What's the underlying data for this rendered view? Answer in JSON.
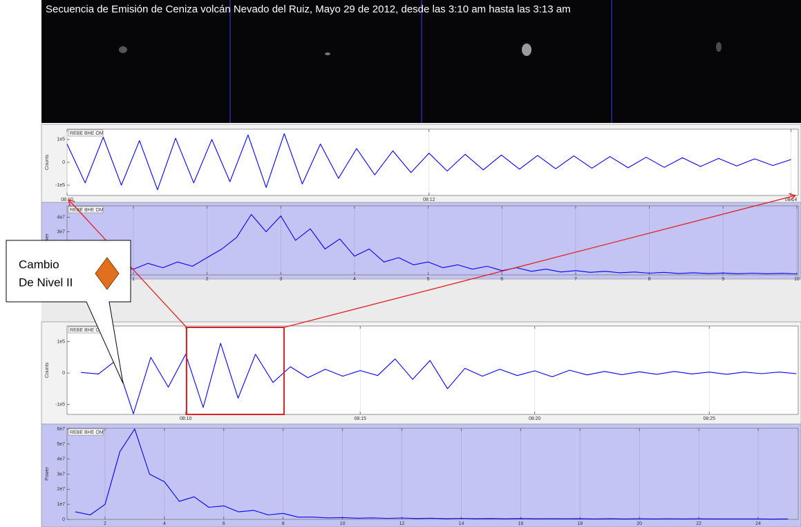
{
  "image_panel": {
    "title": "Secuencia de Emisión de Ceniza volcán Nevado del Ruiz, Mayo 29 de 2012, desde las 3:10 am hasta las 3:13 am"
  },
  "callout": {
    "lines": [
      "Cambio",
      "De Nivel II"
    ]
  },
  "chart_data": [
    {
      "type": "line",
      "label": "REBE BHE OM",
      "ylabel": "Counts",
      "color": "#0000ff",
      "background": "#ffffff",
      "grid": true,
      "x": [
        10.0,
        10.1,
        10.2,
        10.3,
        10.4,
        10.5,
        10.6,
        10.7,
        10.8,
        10.9,
        11.0,
        11.1,
        11.2,
        11.3,
        11.4,
        11.5,
        11.6,
        11.7,
        11.8,
        11.9,
        12.0,
        12.1,
        12.2,
        12.3,
        12.4,
        12.5,
        12.6,
        12.7,
        12.8,
        12.9,
        13.0,
        13.1,
        13.2,
        13.3,
        13.4,
        13.5,
        13.6,
        13.7,
        13.8,
        13.9,
        14.0
      ],
      "values": [
        80000,
        -90000,
        110000,
        -100000,
        95000,
        -120000,
        105000,
        -90000,
        100000,
        -85000,
        120000,
        -110000,
        125000,
        -95000,
        80000,
        -70000,
        60000,
        -55000,
        50000,
        -45000,
        40000,
        -38000,
        35000,
        -33000,
        32000,
        -30000,
        30000,
        -28000,
        28000,
        -26000,
        25000,
        -24000,
        22000,
        -22000,
        20000,
        -18000,
        17000,
        -16000,
        15000,
        -14000,
        12000
      ],
      "xlim": [
        10,
        14.04
      ],
      "ylim": [
        -145000,
        145000
      ],
      "xticks": [
        {
          "value": 10,
          "label": "08:10"
        },
        {
          "value": 12,
          "label": "08:12"
        },
        {
          "value": 14,
          "label": "08:14"
        }
      ],
      "yticks": [
        {
          "value": -100000,
          "label": "-1e5"
        },
        0,
        {
          "value": 100000,
          "label": "1e5"
        }
      ]
    },
    {
      "type": "line",
      "label": "REBE BHE OM",
      "ylabel": "Power",
      "color": "#0000ff",
      "background": "#c4c4f4",
      "grid": true,
      "x": [
        0.2,
        0.4,
        0.6,
        0.8,
        1.0,
        1.2,
        1.4,
        1.6,
        1.8,
        2.0,
        2.2,
        2.4,
        2.6,
        2.8,
        3.0,
        3.2,
        3.4,
        3.6,
        3.8,
        4.0,
        4.2,
        4.4,
        4.6,
        4.8,
        5.0,
        5.2,
        5.4,
        5.6,
        5.8,
        6.0,
        6.2,
        6.4,
        6.6,
        6.8,
        7.0,
        7.2,
        7.4,
        7.6,
        7.8,
        8.0,
        8.2,
        8.4,
        8.6,
        8.8,
        9.0,
        9.2,
        9.4,
        9.6,
        9.8,
        10.0
      ],
      "values": [
        3000000,
        5000000,
        2000000,
        6000000,
        4000000,
        8000000,
        5000000,
        9000000,
        6000000,
        12000000,
        18000000,
        26000000,
        42000000,
        30000000,
        41000000,
        24000000,
        32000000,
        18000000,
        25000000,
        13000000,
        18000000,
        9000000,
        12000000,
        7000000,
        9000000,
        5000000,
        7000000,
        4000000,
        6000000,
        3000000,
        5000000,
        2500000,
        4000000,
        2000000,
        3000000,
        1800000,
        2500000,
        1500000,
        2000000,
        1200000,
        1800000,
        1000000,
        1500000,
        900000,
        1300000,
        800000,
        1200000,
        800000,
        1100000,
        700000
      ],
      "xlim": [
        0.1,
        10.02
      ],
      "ylim": [
        0,
        48000000
      ],
      "xticks": [
        1,
        2,
        3,
        4,
        5,
        6,
        7,
        8,
        9,
        10
      ],
      "yticks": [
        {
          "value": 10000000,
          "label": "1e7"
        },
        {
          "value": 20000000,
          "label": "2e7"
        },
        {
          "value": 30000000,
          "label": "3e7"
        },
        {
          "value": 40000000,
          "label": "4e7"
        }
      ]
    },
    {
      "type": "line",
      "label": "REBE BHE OM",
      "ylabel": "Counts",
      "color": "#0000ff",
      "background": "#ffffff",
      "grid": true,
      "x": [
        7.0,
        7.5,
        8.0,
        8.5,
        9.0,
        9.5,
        10.0,
        10.5,
        11.0,
        11.5,
        12.0,
        12.5,
        13.0,
        13.5,
        14.0,
        14.5,
        15.0,
        15.5,
        16.0,
        16.5,
        17.0,
        17.5,
        18.0,
        18.5,
        19.0,
        19.5,
        20.0,
        20.5,
        21.0,
        21.5,
        22.0,
        22.5,
        23.0,
        23.5,
        24.0,
        24.5,
        25.0,
        25.5,
        26.0,
        26.5,
        27.0,
        27.5
      ],
      "values": [
        2000,
        -3000,
        40000,
        -130000,
        50000,
        -45000,
        60000,
        -110000,
        95000,
        -80000,
        60000,
        -30000,
        20000,
        -15000,
        12000,
        -10000,
        8000,
        -8000,
        45000,
        -20000,
        40000,
        -50000,
        15000,
        -10000,
        12000,
        -8000,
        7000,
        -12000,
        9000,
        -6000,
        5000,
        -5000,
        4000,
        -4000,
        5000,
        -3000,
        3000,
        -4000,
        3000,
        -2000,
        3000,
        -2000
      ],
      "xlim": [
        6.6,
        27.55
      ],
      "ylim": [
        -132000,
        150000
      ],
      "xticks": [
        {
          "value": 10,
          "label": "08:10"
        },
        {
          "value": 15,
          "label": "08:15"
        },
        {
          "value": 20,
          "label": "08:20"
        },
        {
          "value": 25,
          "label": "08:25"
        }
      ],
      "yticks": [
        {
          "value": -100000,
          "label": "-1e5"
        },
        0,
        {
          "value": 100000,
          "label": "1e5"
        }
      ]
    },
    {
      "type": "line",
      "label": "REBE BHE OM",
      "ylabel": "Power",
      "color": "#0000ff",
      "background": "#c4c4f4",
      "grid": true,
      "x": [
        1.0,
        1.5,
        2.0,
        2.5,
        3.0,
        3.5,
        4.0,
        4.5,
        5.0,
        5.5,
        6.0,
        6.5,
        7.0,
        7.5,
        8.0,
        8.5,
        9.0,
        9.5,
        10.0,
        10.5,
        11.0,
        11.5,
        12.0,
        12.5,
        13.0,
        13.5,
        14.0,
        14.5,
        15.0,
        15.5,
        16.0,
        16.5,
        17.0,
        17.5,
        18.0,
        18.5,
        19.0,
        19.5,
        20.0,
        20.5,
        21.0,
        21.5,
        22.0,
        22.5,
        23.0,
        23.5,
        24.0,
        24.5,
        25.0
      ],
      "values": [
        5000000,
        3000000,
        10000000,
        45000000,
        60000000,
        30000000,
        25000000,
        12000000,
        15000000,
        8000000,
        9000000,
        5000000,
        6000000,
        3000000,
        4000000,
        1500000,
        1500000,
        1000000,
        1200000,
        800000,
        1000000,
        700000,
        900000,
        600000,
        800000,
        500000,
        700000,
        500000,
        600000,
        400000,
        600000,
        400000,
        500000,
        400000,
        500000,
        300000,
        500000,
        300000,
        400000,
        300000,
        400000,
        300000,
        400000,
        300000,
        300000,
        300000,
        300000,
        200000,
        300000
      ],
      "xlim": [
        0.72,
        25.35
      ],
      "ylim": [
        0,
        60500000
      ],
      "xticks": [
        2,
        4,
        6,
        8,
        10,
        12,
        14,
        16,
        18,
        20,
        22,
        24
      ],
      "yticks": [
        0,
        {
          "value": 10000000,
          "label": "1e7"
        },
        {
          "value": 20000000,
          "label": "2e7"
        },
        {
          "value": 30000000,
          "label": "3e7"
        },
        {
          "value": 40000000,
          "label": "4e7"
        },
        {
          "value": 50000000,
          "label": "5e7"
        },
        {
          "value": 60000000,
          "label": "6e7"
        }
      ]
    }
  ]
}
